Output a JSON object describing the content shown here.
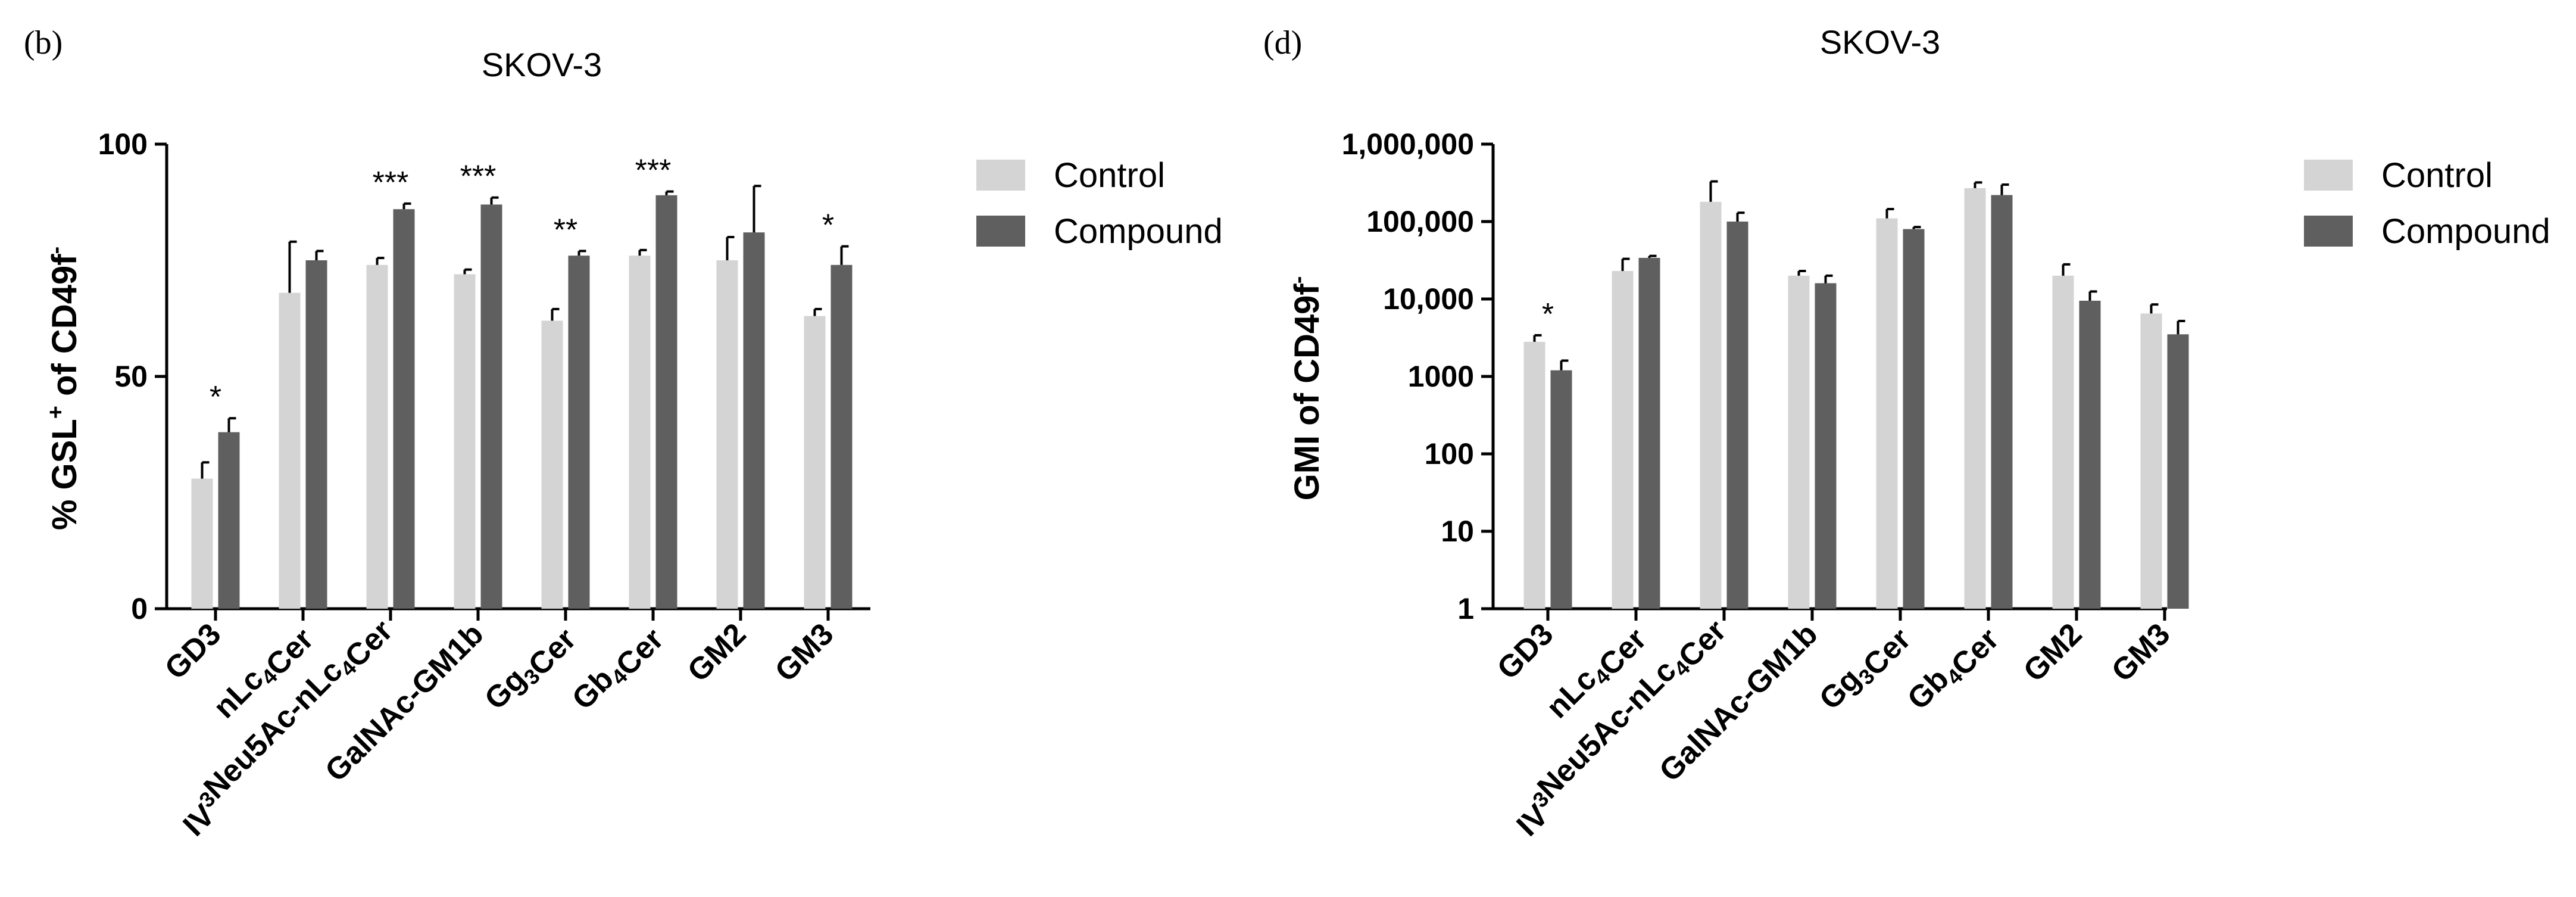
{
  "colors": {
    "control": "#d4d4d4",
    "compound": "#5f5f5f",
    "axis": "#000000"
  },
  "chart_data": [
    {
      "id": "b",
      "panel_label": "(b)",
      "type": "bar",
      "title": "SKOV-3",
      "ylabel_parts": [
        "% GSL",
        "+",
        " of CD49f",
        "-"
      ],
      "scale": "linear",
      "ylim": [
        0,
        100
      ],
      "yticks": [
        0,
        50,
        100
      ],
      "ytick_labels": [
        "0",
        "50",
        "100"
      ],
      "categories": [
        [
          {
            "t": "GD3"
          }
        ],
        [
          {
            "t": "nLc"
          },
          {
            "t": "4",
            "sub": true
          },
          {
            "t": "Cer"
          }
        ],
        [
          {
            "t": "IV"
          },
          {
            "t": "3",
            "sup": true
          },
          {
            "t": "Neu5Ac-nLc"
          },
          {
            "t": "4",
            "sub": true
          },
          {
            "t": "Cer"
          }
        ],
        [
          {
            "t": "GalNAc-GM1b"
          }
        ],
        [
          {
            "t": "Gg"
          },
          {
            "t": "3",
            "sub": true
          },
          {
            "t": "Cer"
          }
        ],
        [
          {
            "t": "Gb"
          },
          {
            "t": "4",
            "sub": true
          },
          {
            "t": "Cer"
          }
        ],
        [
          {
            "t": "GM2"
          }
        ],
        [
          {
            "t": "GM3"
          }
        ]
      ],
      "series": [
        {
          "name": "Control",
          "values": [
            28,
            68,
            74,
            72,
            62,
            76,
            75,
            63
          ],
          "errors": [
            3.5,
            11,
            1.5,
            1,
            2.5,
            1.2,
            5,
            1.5
          ]
        },
        {
          "name": "Compound",
          "values": [
            38,
            75,
            86,
            87,
            76,
            89,
            81,
            74
          ],
          "errors": [
            3,
            2,
            1.2,
            1.5,
            1,
            0.8,
            10,
            4
          ]
        }
      ],
      "significance": [
        "*",
        "",
        "***",
        "***",
        "**",
        "***",
        "",
        "*"
      ],
      "legend": [
        "Control",
        "Compound"
      ],
      "legend_position": "right"
    },
    {
      "id": "d",
      "panel_label": "(d)",
      "type": "bar",
      "title": "SKOV-3",
      "ylabel_parts": [
        "GMI  of CD49f",
        "-"
      ],
      "scale": "log",
      "ylim": [
        1,
        1000000
      ],
      "yticks": [
        1,
        10,
        100,
        1000,
        10000,
        100000,
        1000000
      ],
      "ytick_labels": [
        "1",
        "10",
        "100",
        "1000",
        "10,000",
        "100,000",
        "1,000,000"
      ],
      "categories": [
        [
          {
            "t": "GD3"
          }
        ],
        [
          {
            "t": "nLc"
          },
          {
            "t": "4",
            "sub": true
          },
          {
            "t": "Cer"
          }
        ],
        [
          {
            "t": "IV"
          },
          {
            "t": "3",
            "sup": true
          },
          {
            "t": "Neu5Ac-nLc"
          },
          {
            "t": "4",
            "sub": true
          },
          {
            "t": "Cer"
          }
        ],
        [
          {
            "t": "GalNAc-GM1b"
          }
        ],
        [
          {
            "t": "Gg"
          },
          {
            "t": "3",
            "sub": true
          },
          {
            "t": "Cer"
          }
        ],
        [
          {
            "t": "Gb"
          },
          {
            "t": "4",
            "sub": true
          },
          {
            "t": "Cer"
          }
        ],
        [
          {
            "t": "GM2"
          }
        ],
        [
          {
            "t": "GM3"
          }
        ]
      ],
      "series": [
        {
          "name": "Control",
          "values": [
            2800,
            23000,
            180000,
            20000,
            110000,
            270000,
            20000,
            6500
          ],
          "errors_upper": [
            3400,
            33000,
            330000,
            23000,
            145000,
            320000,
            28000,
            8500
          ]
        },
        {
          "name": "Compound",
          "values": [
            1200,
            34000,
            100000,
            16000,
            80000,
            220000,
            9500,
            3500
          ],
          "errors_upper": [
            1600,
            36000,
            130000,
            20000,
            85000,
            300000,
            12500,
            5200
          ]
        }
      ],
      "significance": [
        "*",
        "",
        "",
        "",
        "",
        "",
        "",
        ""
      ],
      "legend": [
        "Control",
        "Compound"
      ],
      "legend_position": "right"
    }
  ]
}
